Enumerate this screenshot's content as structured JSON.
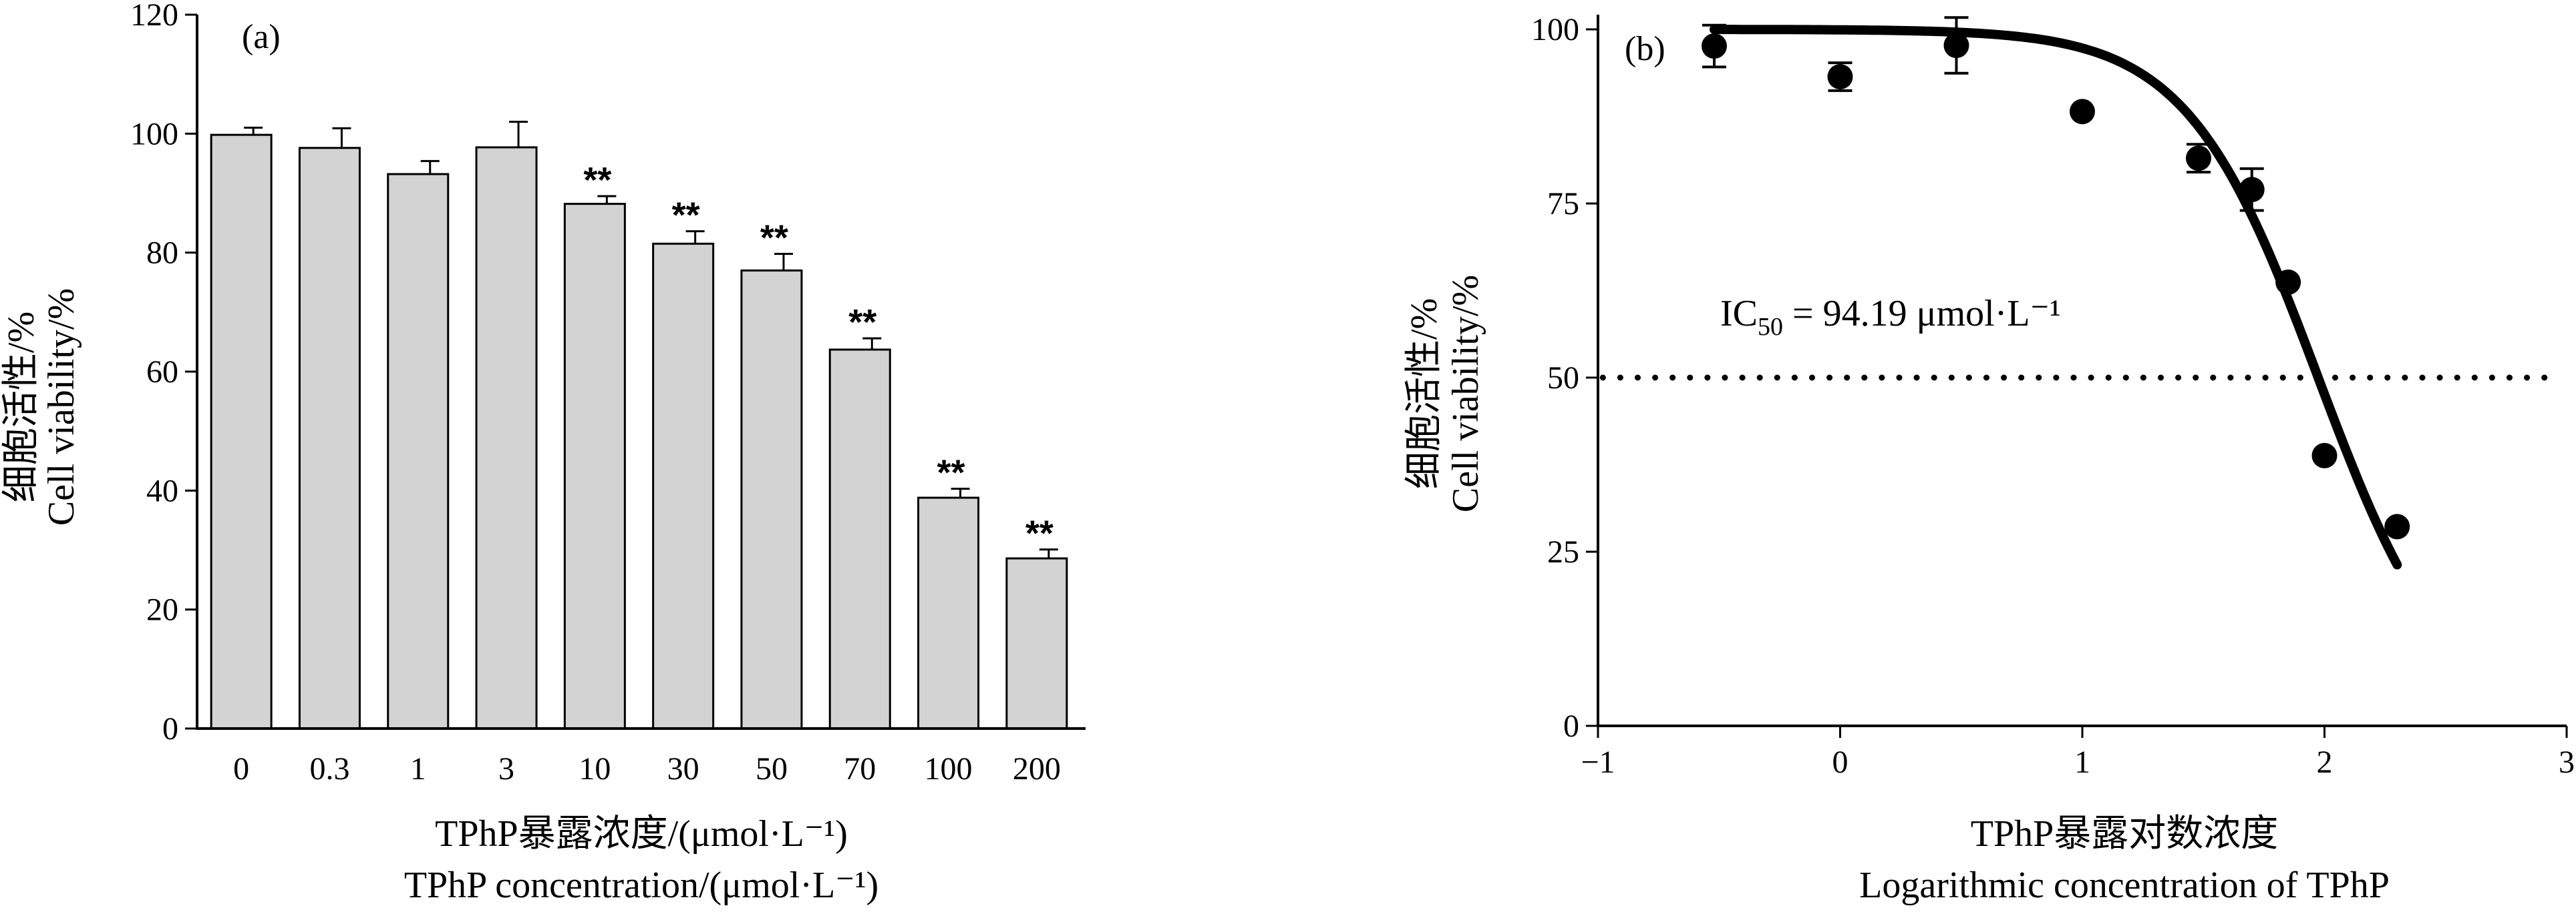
{
  "chart_data": [
    {
      "type": "bar",
      "panel_label": "(a)",
      "categories": [
        "0",
        "0.3",
        "1",
        "3",
        "10",
        "30",
        "50",
        "70",
        "100",
        "200"
      ],
      "values": [
        99.8,
        97.6,
        93.2,
        97.7,
        88.2,
        81.5,
        77.0,
        63.7,
        38.8,
        28.6
      ],
      "errors": [
        1.2,
        3.3,
        2.2,
        4.3,
        1.3,
        2.1,
        2.8,
        1.9,
        1.5,
        1.5
      ],
      "significance": [
        "",
        "",
        "",
        "",
        "**",
        "**",
        "**",
        "**",
        "**",
        "**"
      ],
      "ylim": [
        0,
        120
      ],
      "yticks": [
        "0",
        "20",
        "40",
        "60",
        "80",
        "100",
        "120"
      ],
      "ylabel_cn": "细胞活性/%",
      "ylabel_en": "Cell viability/%",
      "xlabel_cn": "TPhP暴露浓度/(μmol·L⁻¹)",
      "xlabel_en": "TPhP concentration/(μmol·L⁻¹)",
      "bar_color": "#d3d3d3"
    },
    {
      "type": "scatter",
      "panel_label": "(b)",
      "x": [
        -0.52,
        0,
        0.48,
        1,
        1.48,
        1.7,
        1.85,
        2.0,
        2.3
      ],
      "y": [
        97.6,
        93.2,
        97.7,
        88.2,
        81.5,
        77.0,
        63.7,
        38.8,
        28.6
      ],
      "errors": [
        3.0,
        2.0,
        4.0,
        0,
        2.0,
        3.0,
        0,
        0,
        0
      ],
      "fit": {
        "type": "logistic",
        "top": 100,
        "bottom": 0,
        "log_ic50": 1.974,
        "hill": 1.6,
        "x_range": [
          -0.52,
          2.3
        ]
      },
      "reference_line_y": 50,
      "annotation": {
        "main": "IC",
        "sub": "50",
        "rest": " = 94.19 μmol·L⁻¹"
      },
      "xlim": [
        -1,
        3
      ],
      "ylim": [
        0,
        100
      ],
      "xticks": [
        "−1",
        "0",
        "1",
        "2",
        "3"
      ],
      "yticks": [
        "0",
        "25",
        "50",
        "75",
        "100"
      ],
      "ylabel_cn": "细胞活性/%",
      "ylabel_en": "Cell viability/%",
      "xlabel_cn": "TPhP暴露对数浓度",
      "xlabel_en": "Logarithmic concentration of TPhP"
    }
  ]
}
